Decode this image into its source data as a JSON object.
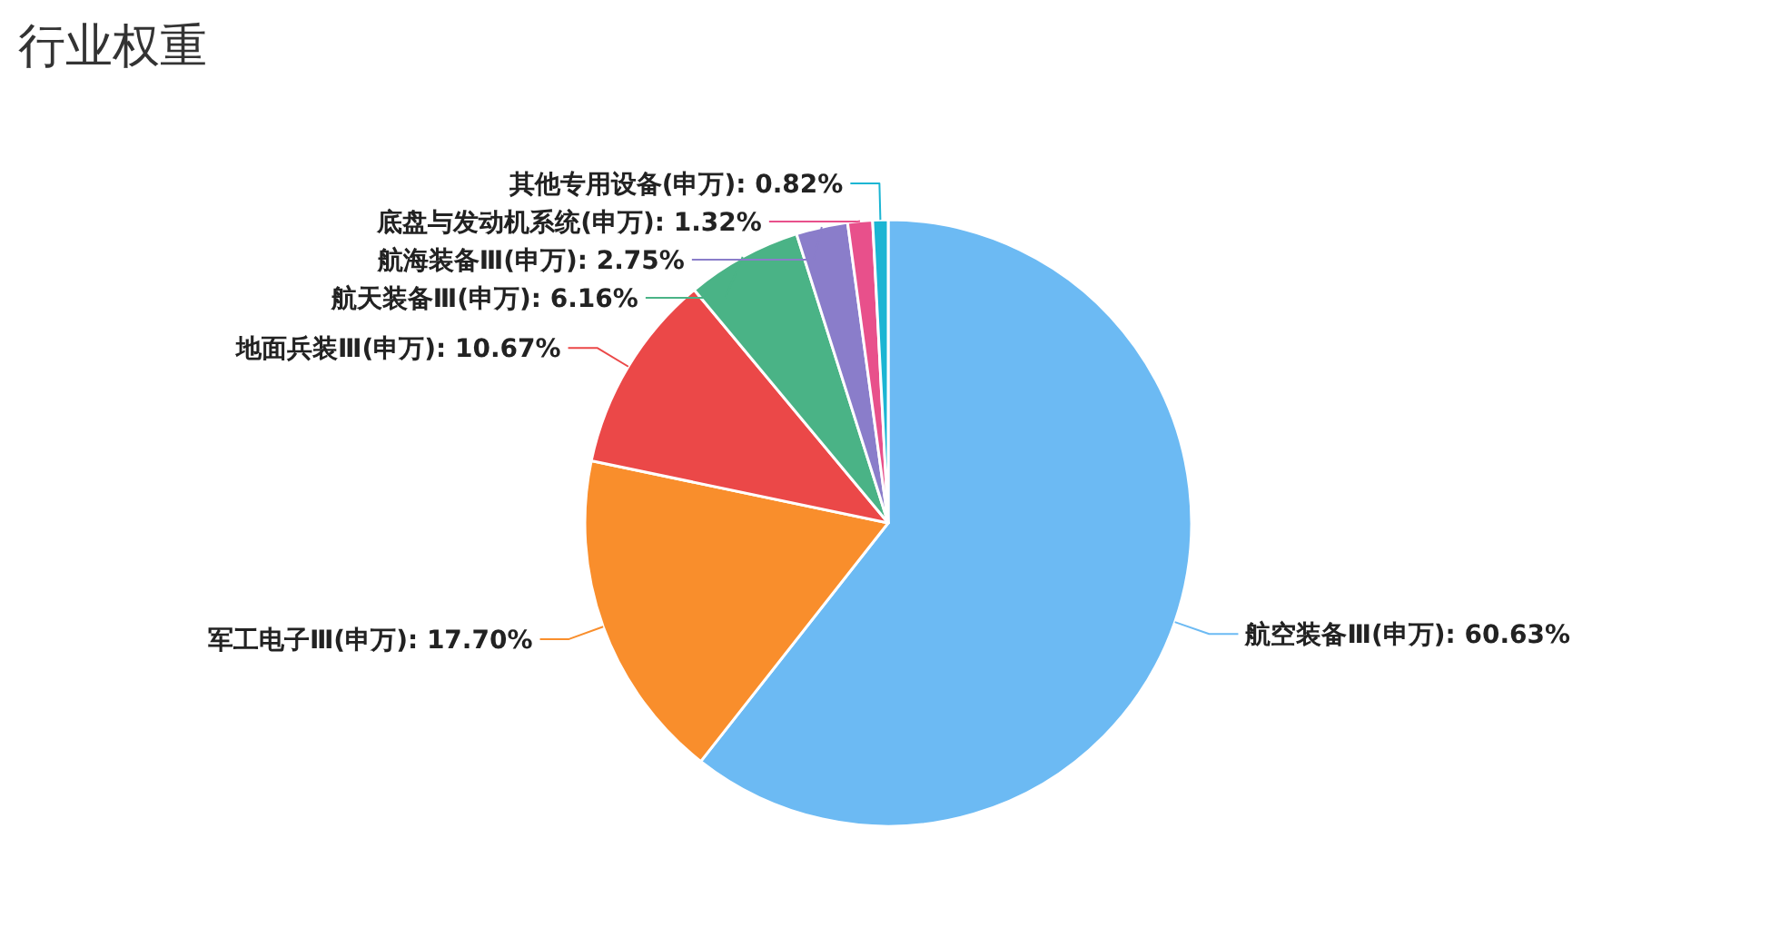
{
  "chart_data": {
    "type": "pie",
    "title": "行业权重",
    "categories": [
      "航空装备Ⅲ(申万)",
      "军工电子Ⅲ(申万)",
      "地面兵装Ⅲ(申万)",
      "航天装备Ⅲ(申万)",
      "航海装备Ⅲ(申万)",
      "底盘与发动机系统(申万)",
      "其他专用设备(申万)"
    ],
    "values": [
      60.63,
      17.7,
      10.67,
      6.16,
      2.75,
      1.32,
      0.82
    ],
    "colors": [
      "#6cbaf3",
      "#f98e2c",
      "#eb4848",
      "#4ab386",
      "#8a7dca",
      "#e8508b",
      "#1bb5d3"
    ],
    "value_labels": [
      ": 60.63%",
      ": 17.70%",
      ": 10.67%",
      ": 6.16%",
      ": 2.75%",
      ": 1.32%",
      ": 0.82%"
    ]
  }
}
